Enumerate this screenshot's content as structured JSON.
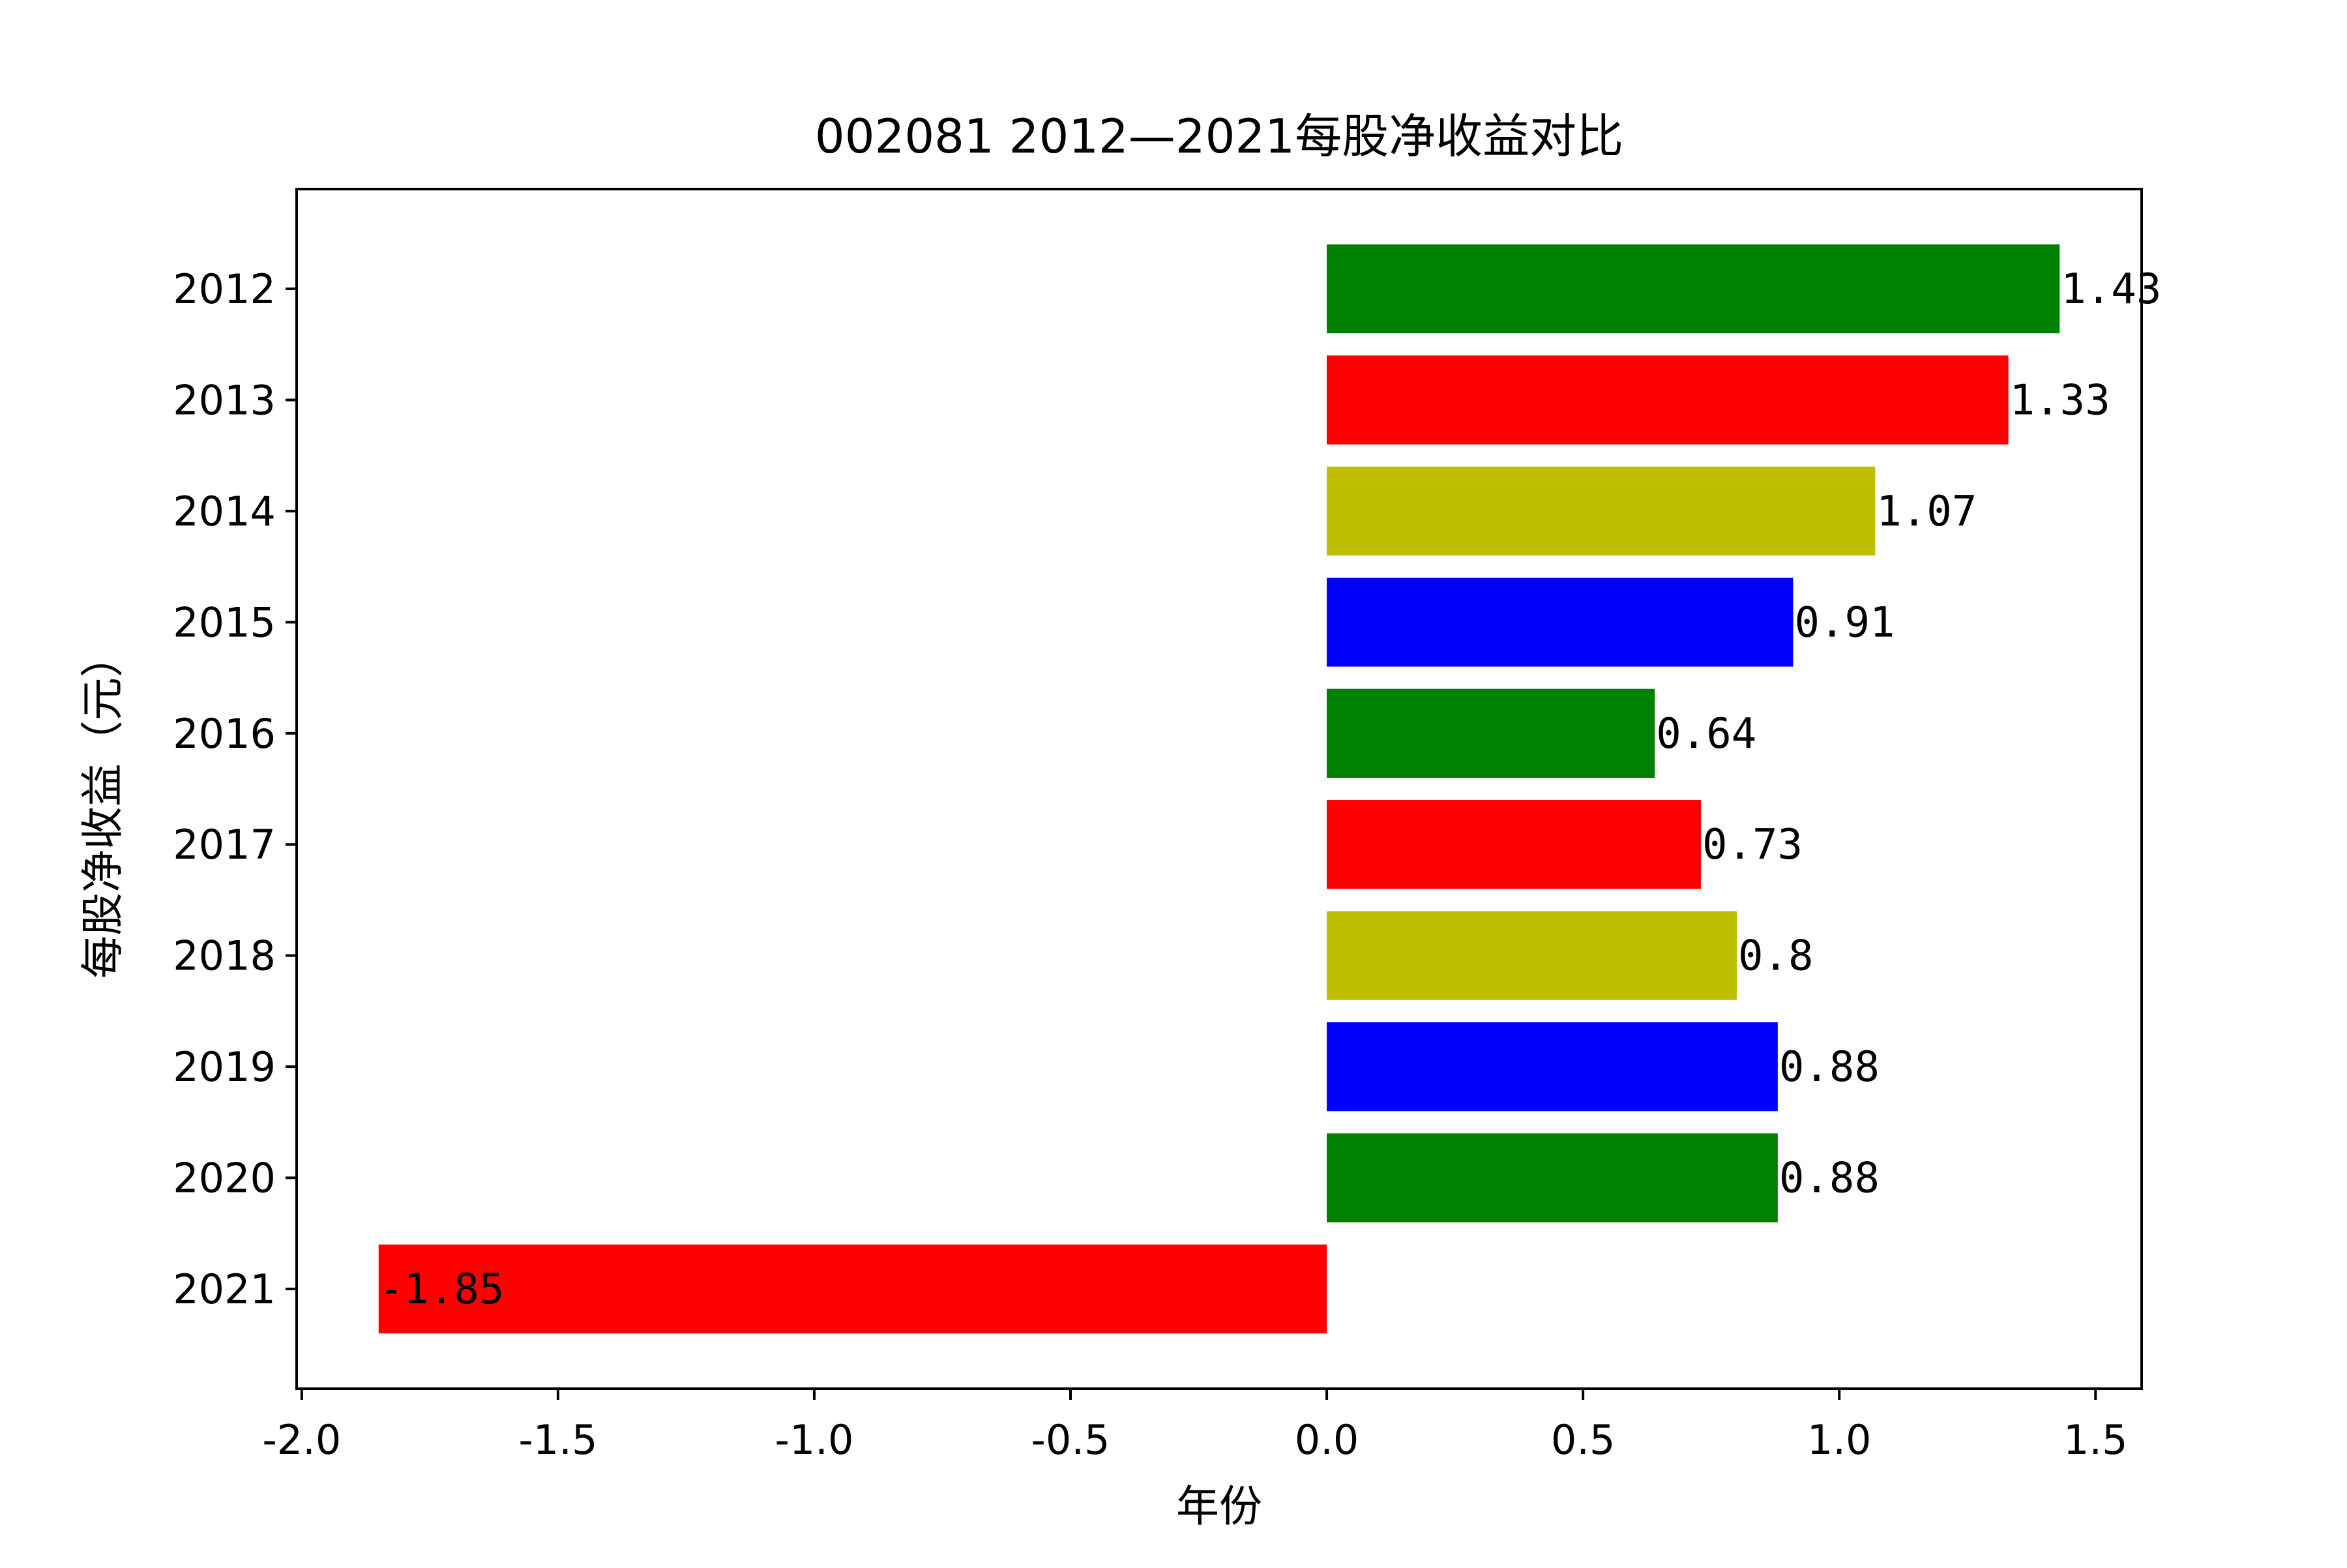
{
  "chart_data": {
    "type": "bar",
    "orientation": "horizontal",
    "title": "002081 2012—2021每股净收益对比",
    "xlabel": "年份",
    "ylabel": "每股净收益（元）",
    "categories": [
      "2012",
      "2013",
      "2014",
      "2015",
      "2016",
      "2017",
      "2018",
      "2019",
      "2020",
      "2021"
    ],
    "values": [
      1.43,
      1.33,
      1.07,
      0.91,
      0.64,
      0.73,
      0.8,
      0.88,
      0.88,
      -1.85
    ],
    "value_labels": [
      "1.43",
      "1.33",
      "1.07",
      "0.91",
      "0.64",
      "0.73",
      "0.8",
      "0.88",
      "0.88",
      "-1.85"
    ],
    "colors": [
      "#008000",
      "#ff0000",
      "#bfbf00",
      "#0000ff",
      "#008000",
      "#ff0000",
      "#bfbf00",
      "#0000ff",
      "#008000",
      "#ff0000"
    ],
    "xlim": [
      -2.01,
      1.59
    ],
    "xticks": [
      -2.0,
      -1.5,
      -1.0,
      -0.5,
      0.0,
      0.5,
      1.0,
      1.5
    ],
    "xtick_labels": [
      "-2.0",
      "-1.5",
      "-1.0",
      "-0.5",
      "0.0",
      "0.5",
      "1.0",
      "1.5"
    ],
    "grid": false,
    "legend": "none"
  }
}
